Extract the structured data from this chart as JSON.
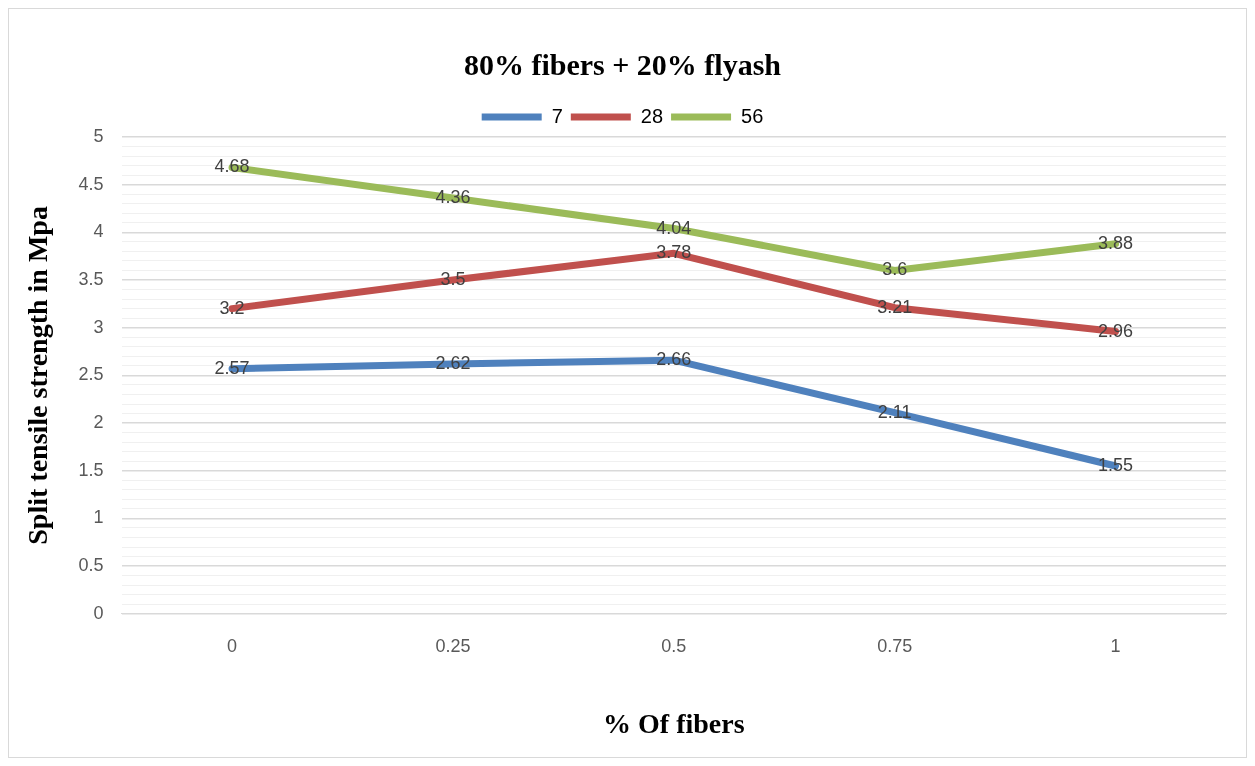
{
  "chart_data": {
    "type": "line",
    "title": "80% fibers + 20% flyash",
    "xlabel": "% Of fibers",
    "ylabel": "Split tensile strength in Mpa",
    "categories": [
      "0",
      "0.25",
      "0.5",
      "0.75",
      "1"
    ],
    "series": [
      {
        "name": "7",
        "color": "#4f81bd",
        "values": [
          2.57,
          2.62,
          2.66,
          2.11,
          1.55
        ]
      },
      {
        "name": "28",
        "color": "#c0504d",
        "values": [
          3.2,
          3.5,
          3.78,
          3.21,
          2.96
        ]
      },
      {
        "name": "56",
        "color": "#9bbb59",
        "values": [
          4.68,
          4.36,
          4.04,
          3.6,
          3.88
        ]
      }
    ],
    "ylim": [
      0,
      5
    ],
    "yticks": [
      0,
      {
        "value": 0.1,
        "label": null
      },
      {
        "value": 0.2,
        "label": null
      },
      {
        "value": 0.3,
        "label": null
      },
      {
        "value": 0.4,
        "label": null
      },
      0.5,
      {
        "value": 0.6,
        "label": null
      },
      {
        "value": 0.7,
        "label": null
      },
      {
        "value": 0.8,
        "label": null
      },
      {
        "value": 0.9,
        "label": null
      },
      1,
      {
        "value": 1.1,
        "label": null
      },
      {
        "value": 1.2,
        "label": null
      },
      {
        "value": 1.3,
        "label": null
      },
      {
        "value": 1.4,
        "label": null
      },
      1.5,
      {
        "value": 1.6,
        "label": null
      },
      {
        "value": 1.7,
        "label": null
      },
      {
        "value": 1.8,
        "label": null
      },
      {
        "value": 1.9,
        "label": null
      },
      2,
      {
        "value": 2.1,
        "label": null
      },
      {
        "value": 2.2,
        "label": null
      },
      {
        "value": 2.3,
        "label": null
      },
      {
        "value": 2.4,
        "label": null
      },
      2.5,
      {
        "value": 2.6,
        "label": null
      },
      {
        "value": 2.7,
        "label": null
      },
      {
        "value": 2.8,
        "label": null
      },
      {
        "value": 2.9,
        "label": null
      },
      3,
      {
        "value": 3.1,
        "label": null
      },
      {
        "value": 3.2,
        "label": null
      },
      {
        "value": 3.3,
        "label": null
      },
      {
        "value": 3.4,
        "label": null
      },
      3.5,
      {
        "value": 3.6,
        "label": null
      },
      {
        "value": 3.7,
        "label": null
      },
      {
        "value": 3.8,
        "label": null
      },
      {
        "value": 3.9,
        "label": null
      },
      4,
      {
        "value": 4.1,
        "label": null
      },
      {
        "value": 4.2,
        "label": null
      },
      {
        "value": 4.3,
        "label": null
      },
      {
        "value": 4.4,
        "label": null
      },
      4.5,
      {
        "value": 4.6,
        "label": null
      },
      {
        "value": 4.7,
        "label": null
      },
      {
        "value": 4.8,
        "label": null
      },
      {
        "value": 4.9,
        "label": null
      },
      5
    ],
    "grid": "y",
    "legend": "top",
    "marker": "none",
    "line_style": "solid",
    "data_labels": true
  }
}
